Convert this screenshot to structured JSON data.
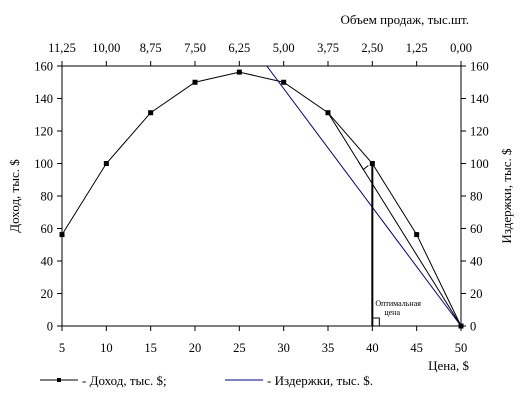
{
  "chart_data": {
    "type": "line",
    "xlabel": "Цена, $",
    "x2label": "Объем продаж, тыс.шт.",
    "ylabel": "Доход, тыс. $",
    "y2label": "Издержки, тыс. $",
    "xlim": [
      5,
      50
    ],
    "ylim": [
      0,
      160
    ],
    "x_ticks": [
      "5",
      "10",
      "15",
      "20",
      "25",
      "30",
      "35",
      "40",
      "45",
      "50"
    ],
    "x2_ticks": [
      "11,25",
      "10,00",
      "8,75",
      "7,50",
      "6,25",
      "5,00",
      "3,75",
      "2,50",
      "1,25",
      "0,00"
    ],
    "y_ticks": [
      "0",
      "20",
      "40",
      "60",
      "80",
      "100",
      "120",
      "140",
      "160"
    ],
    "y2_ticks": [
      "0",
      "20",
      "40",
      "60",
      "80",
      "100",
      "120",
      "140",
      "160"
    ],
    "grid": false,
    "legend_position": "bottom",
    "series": [
      {
        "name": "- Доход, тыс. $;",
        "x": [
          5,
          10,
          15,
          20,
          25,
          30,
          35,
          40,
          45,
          50
        ],
        "values": [
          56.25,
          100,
          131.25,
          150,
          156.25,
          150,
          131.25,
          100,
          56.25,
          0
        ],
        "color": "#000000",
        "marker": "square"
      },
      {
        "name": "- Издержки, тыс. $.",
        "x": [
          28.1,
          50
        ],
        "values": [
          160,
          0
        ],
        "color": "#00008b",
        "marker": "none"
      }
    ],
    "annotation": {
      "text_line1": "Оптимальная",
      "text_line2": "цена",
      "x": 40,
      "y": 100
    }
  }
}
